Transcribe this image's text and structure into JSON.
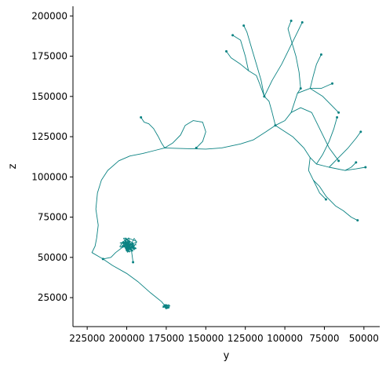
{
  "chart_data": {
    "type": "line",
    "xlabel": "y",
    "ylabel": "z",
    "x_axis_inverted": true,
    "xlim": [
      234000,
      40000
    ],
    "ylim": [
      7000,
      206000
    ],
    "xticks": [
      225000,
      200000,
      175000,
      150000,
      125000,
      100000,
      75000,
      50000
    ],
    "xtick_labels": [
      "225000",
      "200000",
      "175000",
      "150000",
      "125000",
      "100000",
      "75000",
      "50000"
    ],
    "yticks": [
      25000,
      50000,
      75000,
      100000,
      125000,
      150000,
      175000,
      200000
    ],
    "ytick_labels": [
      "25000",
      "50000",
      "75000",
      "100000",
      "125000",
      "150000",
      "175000",
      "200000"
    ],
    "grid": false,
    "line_color": "#0a8282",
    "series": [
      {
        "values": [
          [
            175500,
            19500
          ],
          [
            178000,
            22500
          ],
          [
            185000,
            28000
          ],
          [
            193000,
            35000
          ],
          [
            200000,
            40000
          ],
          [
            209000,
            45000
          ],
          [
            215000,
            49000
          ]
        ]
      },
      {
        "values": [
          [
            215000,
            49000
          ],
          [
            222000,
            53000
          ],
          [
            220000,
            57000
          ],
          [
            219000,
            62000
          ],
          [
            218000,
            70000
          ],
          [
            219500,
            80000
          ],
          [
            218500,
            90000
          ],
          [
            216000,
            98000
          ],
          [
            212000,
            104000
          ],
          [
            205000,
            110000
          ],
          [
            198000,
            113000
          ],
          [
            190000,
            114500
          ],
          [
            182000,
            116500
          ],
          [
            176000,
            118000
          ],
          [
            171000,
            117800
          ],
          [
            160000,
            117500
          ],
          [
            150000,
            117300
          ],
          [
            140000,
            118000
          ],
          [
            128000,
            120500
          ],
          [
            120000,
            123000
          ],
          [
            112000,
            128000
          ],
          [
            106000,
            132000
          ]
        ]
      },
      {
        "values": [
          [
            215000,
            49000
          ],
          [
            210000,
            50000
          ],
          [
            207000,
            53000
          ],
          [
            203000,
            56000
          ],
          [
            199000,
            58500
          ]
        ]
      },
      {
        "values": [
          [
            199000,
            58500
          ],
          [
            197000,
            54000
          ],
          [
            196000,
            47000
          ]
        ]
      },
      {
        "values": [
          [
            176000,
            118000
          ],
          [
            178000,
            121000
          ],
          [
            180000,
            125000
          ],
          [
            183000,
            130000
          ],
          [
            186000,
            133000
          ],
          [
            189000,
            134000
          ],
          [
            191000,
            137000
          ]
        ]
      },
      {
        "values": [
          [
            176000,
            118000
          ],
          [
            171000,
            121000
          ],
          [
            166000,
            126000
          ],
          [
            163000,
            132000
          ],
          [
            158000,
            135000
          ],
          [
            152000,
            134000
          ],
          [
            150000,
            128000
          ],
          [
            152000,
            122000
          ],
          [
            156000,
            118000
          ]
        ]
      },
      {
        "values": [
          [
            106000,
            132000
          ],
          [
            108000,
            140000
          ],
          [
            110000,
            147000
          ],
          [
            113000,
            150000
          ]
        ]
      },
      {
        "values": [
          [
            113000,
            150000
          ],
          [
            116000,
            158000
          ],
          [
            118000,
            163000
          ],
          [
            123000,
            166000
          ],
          [
            128000,
            170000
          ],
          [
            134000,
            174000
          ],
          [
            137000,
            178000
          ]
        ]
      },
      {
        "values": [
          [
            123000,
            166000
          ],
          [
            125000,
            175000
          ],
          [
            128000,
            185000
          ],
          [
            133000,
            188000
          ]
        ]
      },
      {
        "values": [
          [
            113000,
            150000
          ],
          [
            115000,
            160000
          ],
          [
            118000,
            170000
          ],
          [
            121000,
            180000
          ],
          [
            124000,
            190000
          ],
          [
            126000,
            194000
          ]
        ]
      },
      {
        "values": [
          [
            113000,
            150000
          ],
          [
            108000,
            160000
          ],
          [
            102000,
            170000
          ],
          [
            97000,
            180000
          ],
          [
            92000,
            190000
          ],
          [
            89000,
            196000
          ]
        ]
      },
      {
        "values": [
          [
            106000,
            132000
          ],
          [
            100000,
            135000
          ],
          [
            96000,
            140000
          ],
          [
            92000,
            152000
          ],
          [
            90000,
            155000
          ]
        ]
      },
      {
        "values": [
          [
            92000,
            152000
          ],
          [
            84000,
            155000
          ],
          [
            77000,
            155000
          ],
          [
            70000,
            158000
          ]
        ]
      },
      {
        "values": [
          [
            84000,
            155000
          ],
          [
            82000,
            163000
          ],
          [
            80000,
            170000
          ],
          [
            77000,
            176000
          ]
        ]
      },
      {
        "values": [
          [
            90000,
            155000
          ],
          [
            91000,
            165000
          ],
          [
            93000,
            175000
          ],
          [
            96000,
            185000
          ],
          [
            98000,
            192000
          ],
          [
            96000,
            197000
          ]
        ]
      },
      {
        "values": [
          [
            106000,
            132000
          ],
          [
            95000,
            125000
          ],
          [
            88000,
            118000
          ],
          [
            84000,
            112000
          ],
          [
            80000,
            108000
          ],
          [
            72000,
            106000
          ],
          [
            62000,
            104000
          ],
          [
            55000,
            105000
          ],
          [
            49000,
            106000
          ]
        ]
      },
      {
        "values": [
          [
            84000,
            112000
          ],
          [
            85000,
            104000
          ],
          [
            82000,
            98000
          ],
          [
            78000,
            94000
          ],
          [
            74000,
            88000
          ],
          [
            68000,
            82000
          ],
          [
            63000,
            79000
          ],
          [
            58000,
            75000
          ],
          [
            54000,
            73000
          ]
        ]
      },
      {
        "values": [
          [
            82000,
            98000
          ],
          [
            78000,
            90000
          ],
          [
            74000,
            86000
          ]
        ]
      },
      {
        "values": [
          [
            80000,
            108000
          ],
          [
            76000,
            114000
          ],
          [
            72000,
            122000
          ],
          [
            69000,
            130000
          ],
          [
            67000,
            137000
          ]
        ]
      },
      {
        "values": [
          [
            72000,
            106000
          ],
          [
            66000,
            112000
          ],
          [
            60000,
            118000
          ],
          [
            55000,
            124000
          ],
          [
            52000,
            128000
          ]
        ]
      },
      {
        "values": [
          [
            62000,
            104000
          ],
          [
            58000,
            106000
          ],
          [
            55000,
            109000
          ]
        ]
      },
      {
        "values": [
          [
            96000,
            140000
          ],
          [
            90000,
            143000
          ],
          [
            83000,
            140000
          ],
          [
            78000,
            130000
          ],
          [
            72000,
            118000
          ],
          [
            66000,
            110000
          ]
        ]
      },
      {
        "values": [
          [
            84000,
            155000
          ],
          [
            76000,
            150000
          ],
          [
            70000,
            144000
          ],
          [
            66000,
            140000
          ]
        ]
      }
    ],
    "clusters": [
      {
        "x": 199000,
        "y": 58000,
        "rx": 6000,
        "ry": 5000
      },
      {
        "x": 175000,
        "y": 19500,
        "rx": 2500,
        "ry": 1500
      }
    ]
  }
}
